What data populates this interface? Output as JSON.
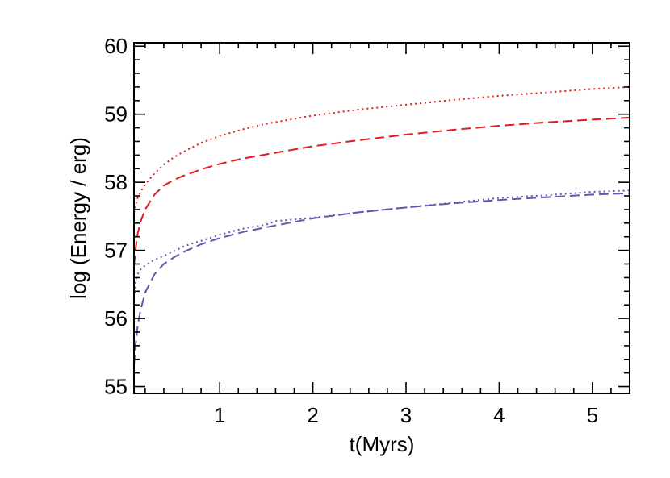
{
  "chart_data": {
    "type": "line",
    "title": "",
    "xlabel": "t(Myrs)",
    "ylabel": "log (Energy / erg)",
    "xlim": [
      0.08,
      5.4
    ],
    "ylim": [
      54.9,
      60.05
    ],
    "x_ticks": [
      1,
      2,
      3,
      4,
      5
    ],
    "y_ticks": [
      55,
      56,
      57,
      58,
      59,
      60
    ],
    "grid": false,
    "legend": "none",
    "series": [
      {
        "color": "#e41a1c",
        "dash": "dotted",
        "x": [
          0.08,
          0.1,
          0.12,
          0.15,
          0.2,
          0.3,
          0.4,
          0.5,
          0.6,
          0.8,
          1.0,
          1.25,
          1.5,
          2.0,
          2.5,
          3.0,
          3.5,
          4.0,
          4.5,
          5.0,
          5.4
        ],
        "y": [
          57.55,
          57.68,
          57.77,
          57.86,
          57.97,
          58.13,
          58.26,
          58.36,
          58.44,
          58.58,
          58.68,
          58.78,
          58.86,
          58.98,
          59.07,
          59.14,
          59.21,
          59.27,
          59.32,
          59.37,
          59.4
        ]
      },
      {
        "color": "#e41a1c",
        "dash": "dashed",
        "x": [
          0.08,
          0.1,
          0.12,
          0.15,
          0.2,
          0.3,
          0.4,
          0.5,
          0.6,
          0.8,
          1.0,
          1.25,
          1.5,
          2.0,
          2.5,
          3.0,
          3.5,
          4.0,
          4.5,
          5.0,
          5.4
        ],
        "y": [
          56.78,
          57.05,
          57.25,
          57.42,
          57.6,
          57.82,
          57.95,
          58.03,
          58.09,
          58.19,
          58.27,
          58.35,
          58.41,
          58.53,
          58.62,
          58.7,
          58.77,
          58.83,
          58.88,
          58.92,
          58.95
        ]
      },
      {
        "color": "#5a5aaf",
        "dash": "dotted",
        "x": [
          0.08,
          0.1,
          0.12,
          0.15,
          0.2,
          0.3,
          0.4,
          0.5,
          0.6,
          0.7,
          0.8,
          1.0,
          1.25,
          1.5,
          1.6,
          2.0,
          2.5,
          3.0,
          3.5,
          4.0,
          4.5,
          5.0,
          5.4
        ],
        "y": [
          56.3,
          56.55,
          56.65,
          56.72,
          56.78,
          56.86,
          56.92,
          56.98,
          57.05,
          57.1,
          57.14,
          57.23,
          57.32,
          57.38,
          57.43,
          57.48,
          57.56,
          57.63,
          57.7,
          57.77,
          57.81,
          57.86,
          57.88
        ]
      },
      {
        "color": "#5a5aaf",
        "dash": "dashed",
        "x": [
          0.08,
          0.1,
          0.12,
          0.15,
          0.2,
          0.3,
          0.4,
          0.5,
          0.6,
          0.8,
          1.0,
          1.25,
          1.5,
          2.0,
          2.5,
          3.0,
          3.5,
          4.0,
          4.5,
          5.0,
          5.4
        ],
        "y": [
          55.32,
          55.65,
          55.9,
          56.12,
          56.38,
          56.65,
          56.8,
          56.89,
          56.97,
          57.09,
          57.18,
          57.27,
          57.34,
          57.47,
          57.56,
          57.63,
          57.69,
          57.74,
          57.78,
          57.82,
          57.84
        ]
      }
    ]
  }
}
